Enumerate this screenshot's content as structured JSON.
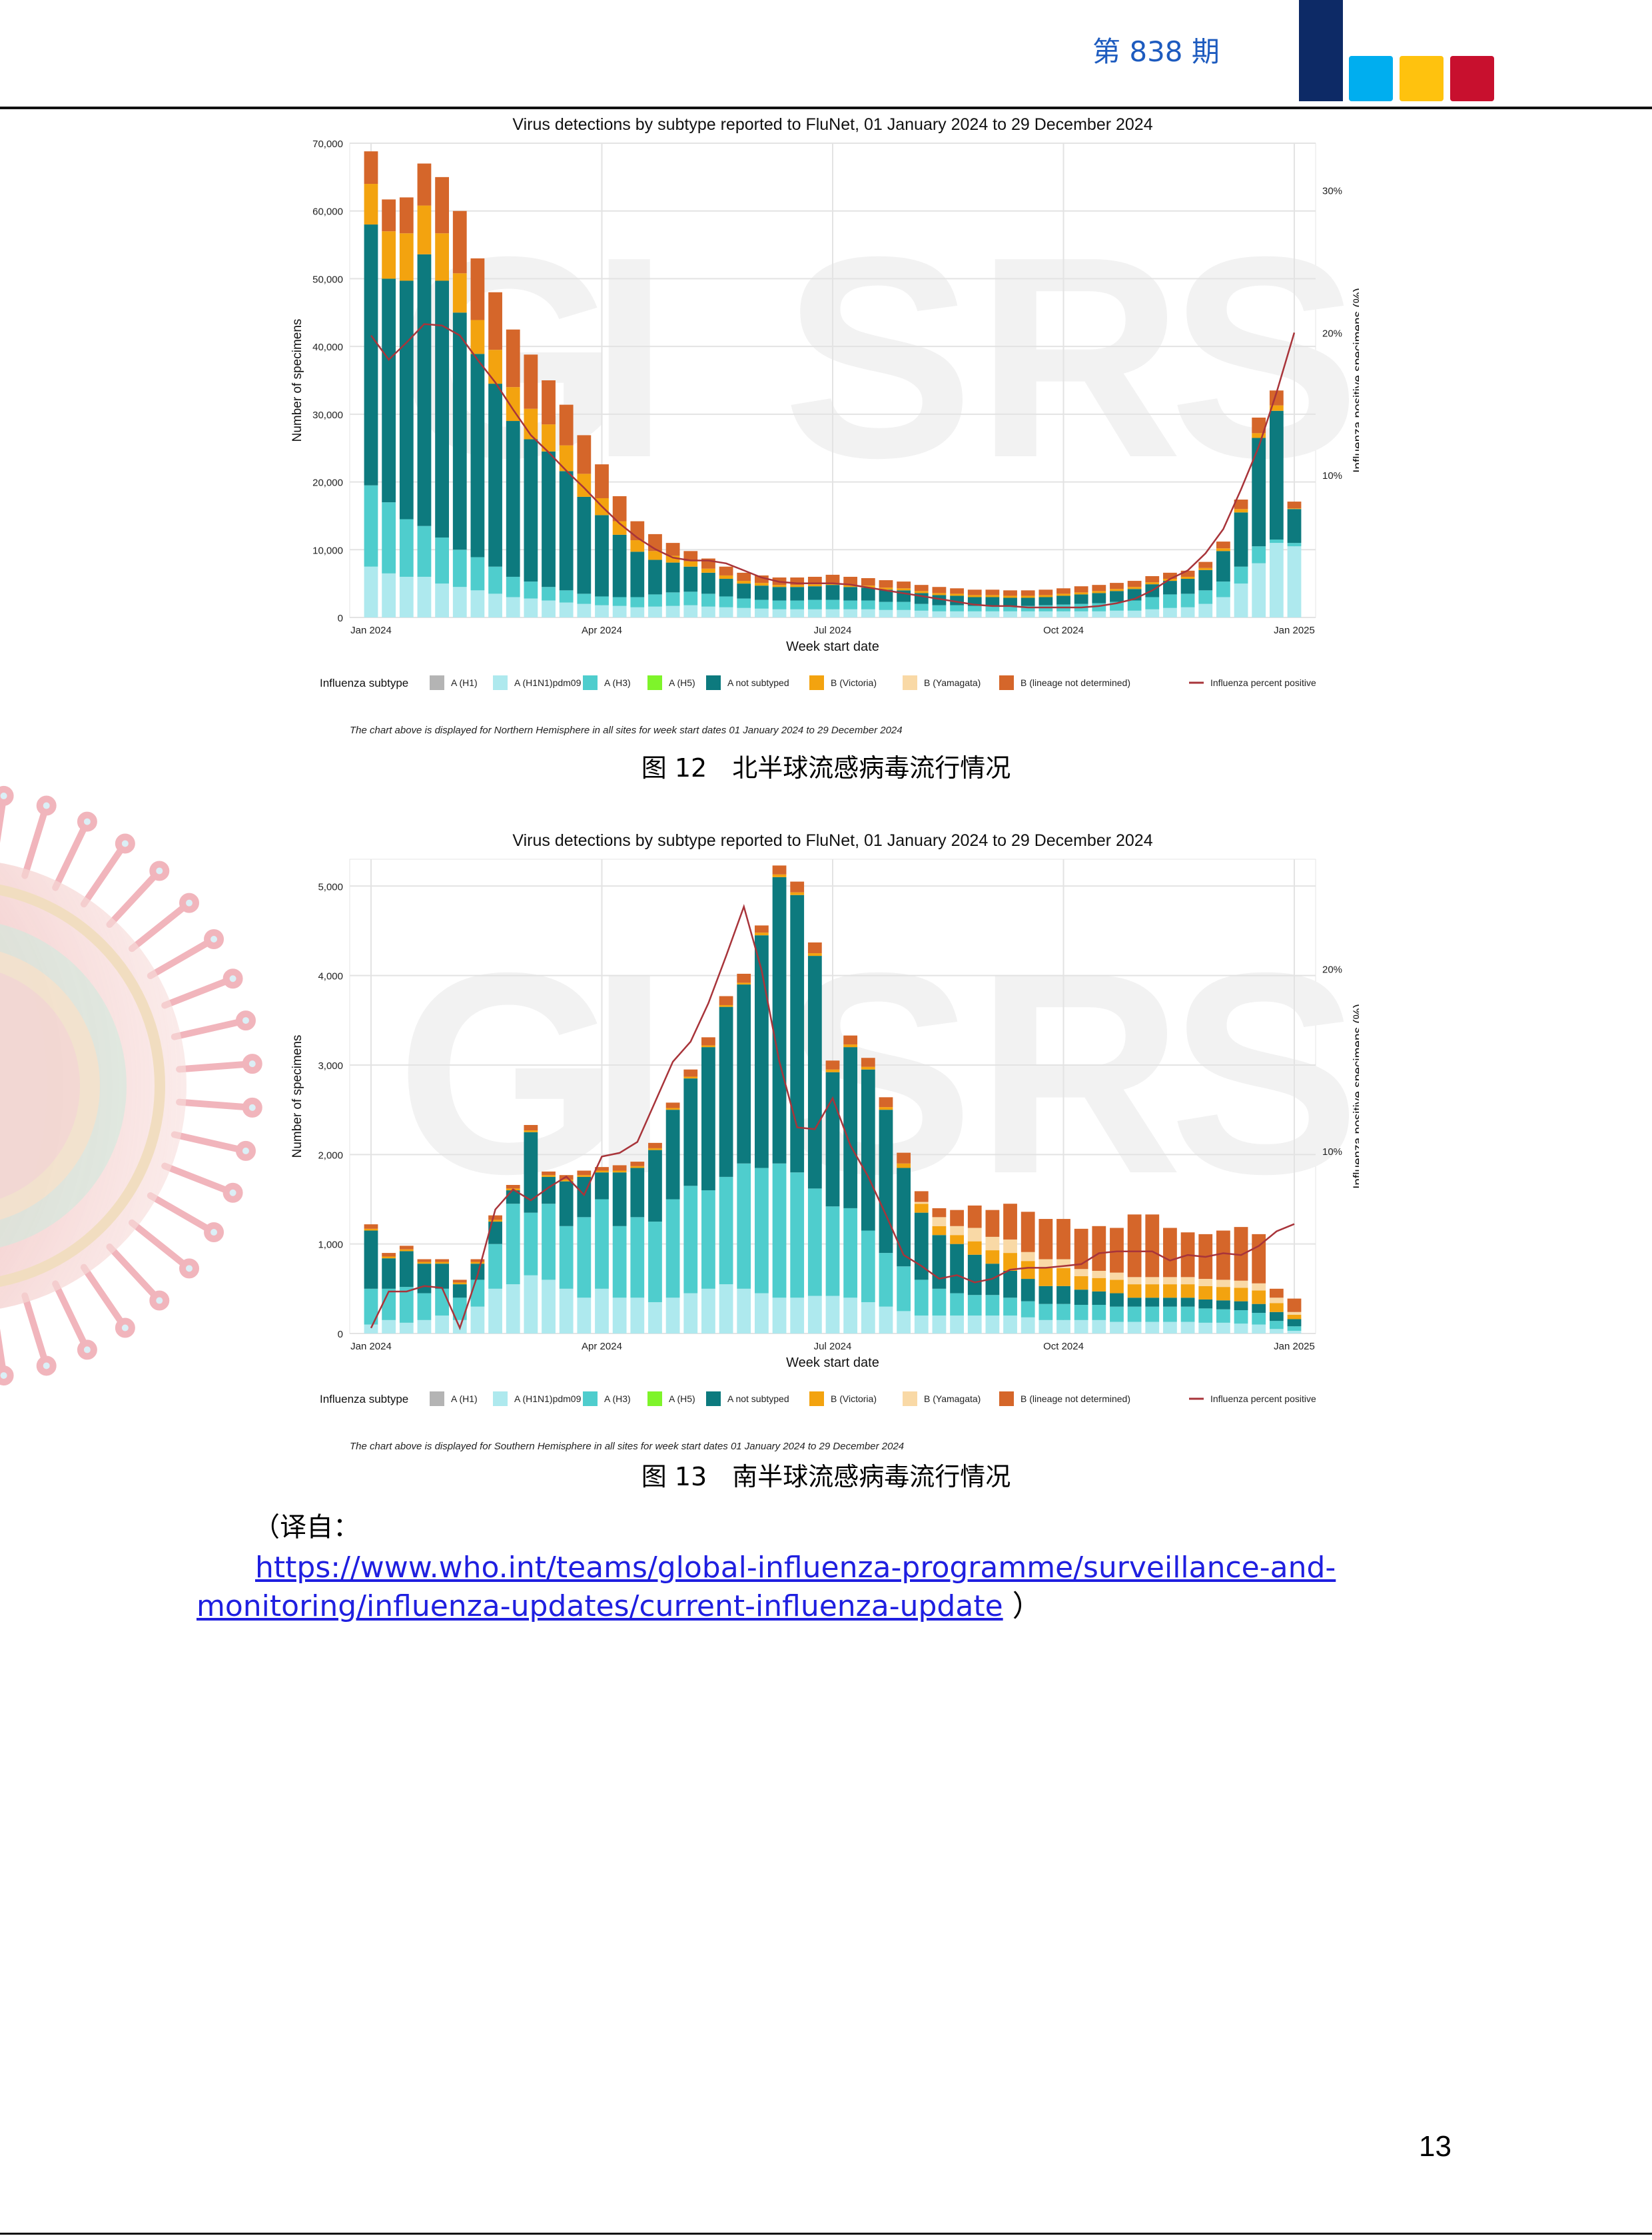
{
  "header": {
    "issue": "第 838 期",
    "logo_colors": [
      "#0d2a66",
      "#00aeef",
      "#ffc20e",
      "#c8102e"
    ]
  },
  "charts": [
    {
      "caption": "图 12　北半球流感病毒流行情况",
      "footnote": "The chart above is displayed for Northern Hemisphere in all sites for week start dates 01 January 2024 to 29 December 2024"
    },
    {
      "caption": "图 13　南半球流感病毒流行情况",
      "footnote": "The chart above is displayed for Southern Hemisphere in all sites for week start dates 01 January 2024 to 29 December 2024"
    }
  ],
  "chart_data": [
    {
      "type": "bar",
      "title": "Virus detections by subtype reported to FluNet, 01 January 2024 to 29 December 2024",
      "xlabel": "Week start date",
      "ylabel": "Number of specimens",
      "y2label": "Influenza positive specimens (%)",
      "ylim": [
        0,
        70000
      ],
      "y2lim": [
        0,
        33.3
      ],
      "yticks": [
        "0",
        "10,000",
        "20,000",
        "30,000",
        "40,000",
        "50,000",
        "60,000",
        "70,000"
      ],
      "ytick_values": [
        0,
        10000,
        20000,
        30000,
        40000,
        50000,
        60000,
        70000
      ],
      "y2ticks": [
        "10%",
        "20%",
        "30%"
      ],
      "y2tick_values": [
        10,
        20,
        30
      ],
      "xticks": [
        "Jan 2024",
        "Apr 2024",
        "Jul 2024",
        "Oct 2024",
        "Jan 2025"
      ],
      "xtick_weeks": [
        0,
        13,
        26,
        39,
        52
      ],
      "legend_title": "Influenza subtype",
      "legend": [
        {
          "name": "A (H1)",
          "color": "#b4b4b4"
        },
        {
          "name": "A (H1N1)pdm09",
          "color": "#aee9ee"
        },
        {
          "name": "A (H3)",
          "color": "#4fcdcd"
        },
        {
          "name": "A (H5)",
          "color": "#7ef42a"
        },
        {
          "name": "A not subtyped",
          "color": "#0d7a7e"
        },
        {
          "name": "B (Victoria)",
          "color": "#f3a30f"
        },
        {
          "name": "B (Yamagata)",
          "color": "#f9d9a6"
        },
        {
          "name": "B (lineage not determined)",
          "color": "#d5662a"
        },
        {
          "name": "Influenza percent positive",
          "color": "#a8343a"
        }
      ],
      "series": [
        {
          "name": "A (H1N1)pdm09",
          "values": [
            7500,
            6500,
            6000,
            6000,
            5000,
            4500,
            4000,
            3500,
            3000,
            2800,
            2500,
            2200,
            2000,
            1800,
            1700,
            1500,
            1600,
            1700,
            1800,
            1600,
            1500,
            1400,
            1300,
            1200,
            1200,
            1200,
            1200,
            1200,
            1200,
            1100,
            1100,
            1000,
            900,
            900,
            900,
            900,
            900,
            900,
            900,
            900,
            900,
            900,
            1000,
            1000,
            1200,
            1400,
            1500,
            2000,
            3000,
            5000,
            8000,
            11000,
            10500
          ]
        },
        {
          "name": "A (H3)",
          "values": [
            12000,
            10500,
            8500,
            7500,
            6800,
            5500,
            4900,
            4000,
            3000,
            2500,
            2000,
            1800,
            1500,
            1300,
            1300,
            1500,
            1800,
            2000,
            2000,
            1900,
            1600,
            1400,
            1300,
            1300,
            1300,
            1400,
            1400,
            1300,
            1300,
            1200,
            1200,
            1000,
            900,
            900,
            800,
            800,
            800,
            800,
            900,
            1000,
            1100,
            1200,
            1300,
            1500,
            1800,
            2000,
            2000,
            2000,
            2300,
            2500,
            2500,
            500,
            500
          ]
        },
        {
          "name": "A not subtyped",
          "values": [
            38500,
            33000,
            35200,
            40100,
            37900,
            35000,
            30000,
            27000,
            23000,
            21000,
            20000,
            17600,
            14300,
            12000,
            9200,
            6700,
            5100,
            4400,
            3700,
            3100,
            2600,
            2200,
            2100,
            2000,
            2000,
            2000,
            2200,
            2000,
            1900,
            1800,
            1700,
            1600,
            1500,
            1400,
            1300,
            1300,
            1200,
            1200,
            1200,
            1300,
            1400,
            1500,
            1600,
            1700,
            1900,
            2000,
            2200,
            3000,
            4500,
            8000,
            16000,
            19000,
            5000
          ]
        },
        {
          "name": "B (Victoria)",
          "values": [
            6000,
            7000,
            7000,
            7200,
            7000,
            5800,
            5000,
            5000,
            5000,
            4500,
            4000,
            3800,
            3400,
            2500,
            2000,
            1700,
            1300,
            1000,
            800,
            600,
            500,
            400,
            400,
            300,
            300,
            300,
            300,
            300,
            300,
            300,
            300,
            300,
            300,
            300,
            300,
            300,
            300,
            300,
            300,
            300,
            300,
            300,
            300,
            300,
            300,
            300,
            300,
            300,
            400,
            500,
            700,
            800,
            100
          ]
        },
        {
          "name": "B (lineage not determined)",
          "values": [
            4800,
            4700,
            5300,
            6200,
            8300,
            9200,
            9100,
            8500,
            8500,
            8000,
            6500,
            6000,
            5700,
            5000,
            3700,
            2800,
            2500,
            1900,
            1500,
            1500,
            1300,
            1200,
            1100,
            1100,
            1100,
            1100,
            1200,
            1200,
            1100,
            1100,
            1000,
            900,
            900,
            800,
            800,
            800,
            800,
            800,
            800,
            800,
            900,
            900,
            900,
            900,
            900,
            900,
            900,
            900,
            1000,
            1400,
            2300,
            2200,
            1000
          ]
        }
      ],
      "line": {
        "name": "Influenza percent positive",
        "values": [
          19.8,
          18.1,
          19.3,
          20.6,
          20.5,
          19.8,
          18.1,
          16.5,
          14.6,
          12.8,
          11.6,
          10.3,
          9.1,
          7.8,
          6.6,
          5.6,
          4.8,
          4.2,
          4.0,
          4.0,
          3.8,
          3.3,
          2.8,
          2.5,
          2.4,
          2.4,
          2.4,
          2.3,
          2.1,
          1.9,
          1.7,
          1.5,
          1.3,
          1.1,
          0.9,
          0.8,
          0.8,
          0.7,
          0.7,
          0.7,
          0.7,
          0.8,
          1.0,
          1.3,
          1.9,
          2.7,
          3.3,
          4.5,
          6.2,
          9.0,
          12.0,
          15.8,
          20.0
        ]
      }
    },
    {
      "type": "bar",
      "title": "Virus detections by subtype reported to FluNet, 01 January 2024 to 29 December 2024",
      "xlabel": "Week start date",
      "ylabel": "Number of specimens",
      "y2label": "Influenza positive specimens (%)",
      "ylim": [
        0,
        5300
      ],
      "y2lim": [
        0,
        26
      ],
      "yticks": [
        "0",
        "1,000",
        "2,000",
        "3,000",
        "4,000",
        "5,000"
      ],
      "ytick_values": [
        0,
        1000,
        2000,
        3000,
        4000,
        5000
      ],
      "y2ticks": [
        "10%",
        "20%"
      ],
      "y2tick_values": [
        10,
        20
      ],
      "xticks": [
        "Jan 2024",
        "Apr 2024",
        "Jul 2024",
        "Oct 2024",
        "Jan 2025"
      ],
      "xtick_weeks": [
        0,
        13,
        26,
        39,
        52
      ],
      "legend_title": "Influenza subtype",
      "legend": [
        {
          "name": "A (H1)",
          "color": "#b4b4b4"
        },
        {
          "name": "A (H1N1)pdm09",
          "color": "#aee9ee"
        },
        {
          "name": "A (H3)",
          "color": "#4fcdcd"
        },
        {
          "name": "A (H5)",
          "color": "#7ef42a"
        },
        {
          "name": "A not subtyped",
          "color": "#0d7a7e"
        },
        {
          "name": "B (Victoria)",
          "color": "#f3a30f"
        },
        {
          "name": "B (Yamagata)",
          "color": "#f9d9a6"
        },
        {
          "name": "B (lineage not determined)",
          "color": "#d5662a"
        },
        {
          "name": "Influenza percent positive",
          "color": "#a8343a"
        }
      ],
      "series": [
        {
          "name": "A (H1N1)pdm09",
          "values": [
            100,
            150,
            120,
            150,
            200,
            150,
            300,
            500,
            550,
            650,
            600,
            500,
            400,
            500,
            400,
            400,
            350,
            400,
            450,
            500,
            550,
            500,
            450,
            400,
            400,
            420,
            420,
            400,
            350,
            300,
            250,
            200,
            200,
            200,
            200,
            200,
            200,
            180,
            150,
            150,
            150,
            150,
            130,
            130,
            130,
            130,
            130,
            120,
            120,
            110,
            100,
            50,
            30
          ]
        },
        {
          "name": "A (H3)",
          "values": [
            400,
            350,
            400,
            300,
            300,
            250,
            300,
            500,
            900,
            700,
            850,
            700,
            900,
            1000,
            800,
            900,
            900,
            1100,
            1200,
            1100,
            1200,
            1400,
            1400,
            1500,
            1400,
            1200,
            1000,
            1000,
            800,
            600,
            500,
            400,
            300,
            250,
            230,
            230,
            200,
            180,
            180,
            180,
            170,
            170,
            170,
            170,
            170,
            170,
            170,
            160,
            150,
            150,
            130,
            90,
            50
          ]
        },
        {
          "name": "A not subtyped",
          "values": [
            650,
            340,
            400,
            330,
            280,
            150,
            180,
            250,
            150,
            900,
            300,
            500,
            450,
            300,
            600,
            550,
            800,
            1000,
            1200,
            1600,
            1900,
            2000,
            2600,
            3200,
            3100,
            2600,
            1500,
            1800,
            1800,
            1600,
            1100,
            750,
            600,
            550,
            450,
            350,
            300,
            250,
            200,
            200,
            170,
            150,
            150,
            100,
            100,
            100,
            100,
            100,
            100,
            100,
            100,
            100,
            80
          ]
        },
        {
          "name": "B (Victoria)",
          "values": [
            20,
            20,
            20,
            20,
            20,
            20,
            20,
            20,
            20,
            20,
            20,
            20,
            20,
            20,
            20,
            20,
            20,
            20,
            20,
            20,
            20,
            20,
            30,
            30,
            30,
            30,
            30,
            30,
            30,
            30,
            50,
            100,
            100,
            100,
            150,
            150,
            200,
            200,
            200,
            200,
            150,
            150,
            150,
            150,
            150,
            150,
            150,
            150,
            150,
            150,
            150,
            100,
            50
          ]
        },
        {
          "name": "B (Yamagata)",
          "values": [
            0,
            0,
            0,
            0,
            0,
            0,
            0,
            0,
            0,
            0,
            0,
            0,
            0,
            0,
            0,
            0,
            0,
            0,
            0,
            0,
            0,
            0,
            0,
            0,
            0,
            0,
            0,
            0,
            0,
            0,
            0,
            20,
            100,
            100,
            150,
            150,
            150,
            100,
            100,
            100,
            80,
            80,
            80,
            80,
            80,
            80,
            80,
            80,
            80,
            80,
            80,
            60,
            30
          ]
        },
        {
          "name": "B (lineage not determined)",
          "values": [
            50,
            40,
            40,
            30,
            30,
            30,
            30,
            50,
            40,
            60,
            40,
            50,
            50,
            40,
            60,
            50,
            60,
            60,
            80,
            90,
            100,
            100,
            80,
            100,
            120,
            120,
            100,
            100,
            100,
            110,
            120,
            120,
            100,
            180,
            250,
            300,
            400,
            450,
            450,
            450,
            450,
            500,
            500,
            700,
            700,
            550,
            500,
            500,
            550,
            600,
            550,
            100,
            150
          ]
        }
      ],
      "line": {
        "name": "Influenza percent positive",
        "values": [
          0.3,
          2.3,
          2.3,
          2.6,
          2.5,
          0.3,
          3.2,
          6.8,
          7.9,
          7.3,
          8.0,
          8.6,
          7.6,
          9.7,
          9.9,
          10.5,
          12.7,
          14.9,
          16.0,
          18.1,
          20.7,
          23.4,
          19.9,
          14.9,
          11.3,
          11.2,
          12.9,
          10.3,
          8.6,
          6.5,
          4.3,
          3.7,
          3.0,
          3.2,
          2.8,
          3.0,
          3.5,
          3.6,
          3.6,
          3.7,
          3.8,
          4.4,
          4.5,
          4.5,
          4.5,
          4.0,
          4.3,
          4.2,
          4.4,
          4.3,
          4.8,
          5.6,
          6.0
        ]
      }
    }
  ],
  "source": {
    "intro": "（译自：",
    "url_text": "https://www.who.int/teams/global-influenza-programme/surveillance-and-monitoring/influenza-updates/current-influenza-update",
    "close": "）"
  },
  "page_number": "13"
}
